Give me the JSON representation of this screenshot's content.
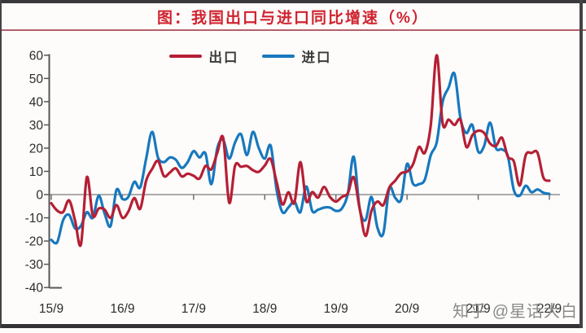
{
  "title": "图：我国出口与进口同比增速（%）",
  "watermark": "知乎 @星话大白",
  "legend": [
    {
      "label": "出口",
      "color": "#b51f34"
    },
    {
      "label": "进口",
      "color": "#1878be"
    }
  ],
  "colors": {
    "title_red": "#cf2330",
    "export_red": "#b51f34",
    "import_blue": "#1878be",
    "zero_line_gray": "#8f8f8f",
    "axis_gray": "#57575a",
    "tick_label": "#2c2c2c",
    "frame_dark": "#39393b",
    "watermark_gray": "#8a8a8a"
  },
  "chart_data": {
    "type": "line",
    "title": "图：我国出口与进口同比增速（%）",
    "xlabel": "",
    "ylabel": "",
    "x_start": "2015-09",
    "x_end": "2022-09",
    "frequency": "monthly",
    "x_tick_labels": [
      "15/9",
      "16/9",
      "17/9",
      "18/9",
      "19/9",
      "20/9",
      "21/9",
      "22/9"
    ],
    "y_ticks": [
      60,
      50,
      40,
      30,
      20,
      10,
      0,
      -10,
      -20,
      -30,
      -40
    ],
    "ylim": [
      -40,
      60
    ],
    "grid": "zero-line-only",
    "legend_position": "top-center",
    "series": [
      {
        "name": "出口",
        "color": "#b51f34",
        "values": [
          -3.7,
          -6.9,
          -7.5,
          -2.5,
          -11,
          -21.5,
          7.5,
          -9,
          -6,
          -6.5,
          -10,
          -4.5,
          -10,
          -7.3,
          -1.5,
          -6.1,
          6,
          11,
          14.5,
          8,
          9.5,
          11.3,
          7.8,
          9,
          8.1,
          6.9,
          12.3,
          10.9,
          18,
          24.3,
          -3.5,
          12.5,
          12,
          12.3,
          10.5,
          9.8,
          12.5,
          15.3,
          5.4,
          -4.2,
          1,
          -3.5,
          14,
          -2.8,
          1.1,
          -1.3,
          3.3,
          -1,
          -3,
          -1,
          0.5,
          7.5,
          -6,
          -17.8,
          -7,
          -3,
          -4.5,
          3,
          6,
          9.2,
          9.9,
          13,
          20.5,
          18,
          30,
          60,
          30.6,
          32.3,
          30,
          32.2,
          20.5,
          25.5,
          27.5,
          26.5,
          22,
          21,
          24.5,
          16.3,
          14.3,
          3.9,
          16.9,
          17.9,
          18,
          7.3,
          6
        ]
      },
      {
        "name": "进口",
        "color": "#1878be",
        "values": [
          -19.5,
          -20.5,
          -11,
          -8.7,
          -14.5,
          -13.5,
          -7.6,
          -10,
          -0.5,
          -8.2,
          -13.5,
          2,
          -1.9,
          -1,
          5.5,
          3.1,
          15.5,
          27,
          16,
          14,
          16,
          15,
          11.5,
          14,
          18.7,
          16,
          17.7,
          4.5,
          20,
          23.5,
          15.5,
          22.5,
          26,
          17,
          27,
          20,
          15.5,
          21,
          2,
          -7.6,
          -5.5,
          -3,
          -7.6,
          3.5,
          -7,
          -6.5,
          -5.6,
          -5.6,
          -7,
          -6,
          0.3,
          16.3,
          -6,
          -11,
          -1,
          -14.2,
          -16.7,
          2.7,
          -1.4,
          -2.1,
          13.2,
          4.7,
          4.5,
          6.5,
          17,
          22.5,
          40,
          46,
          52,
          33,
          26.5,
          30,
          18.5,
          21,
          31,
          20,
          19.5,
          16.5,
          2,
          -0.5,
          3.8,
          1,
          2.2,
          0.8,
          0.3
        ]
      }
    ]
  }
}
